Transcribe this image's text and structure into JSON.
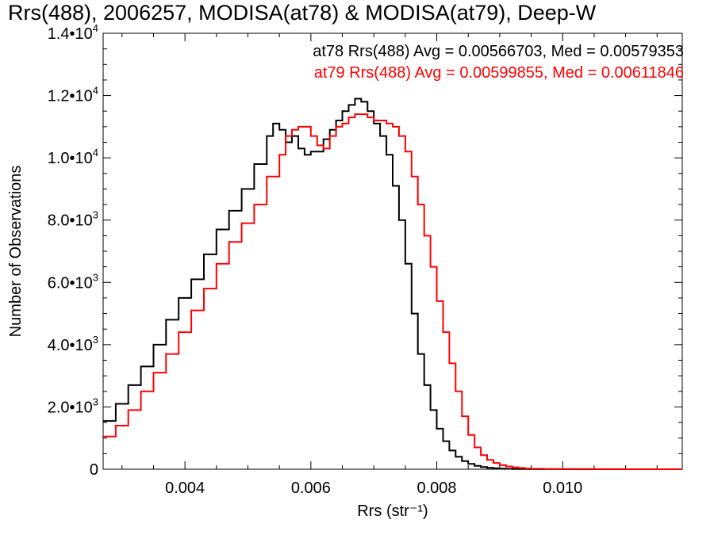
{
  "chart_data": {
    "type": "line",
    "title": "Rrs(488), 2006257, MODISA(at78) & MODISA(at79), Deep-W",
    "xlabel": "Rrs (str⁻¹)",
    "ylabel": "Number of Observations",
    "xlim": [
      0.0027,
      0.0119
    ],
    "ylim": [
      0,
      14000
    ],
    "x_ticks": [
      {
        "value": 0.004,
        "label": "0.004"
      },
      {
        "value": 0.006,
        "label": "0.006"
      },
      {
        "value": 0.008,
        "label": "0.008"
      },
      {
        "value": 0.01,
        "label": "0.010"
      }
    ],
    "y_ticks": [
      {
        "value": 0,
        "mant": "0",
        "exp": ""
      },
      {
        "value": 2000,
        "mant": "2.0•10",
        "exp": "3"
      },
      {
        "value": 4000,
        "mant": "4.0•10",
        "exp": "3"
      },
      {
        "value": 6000,
        "mant": "6.0•10",
        "exp": "3"
      },
      {
        "value": 8000,
        "mant": "8.0•10",
        "exp": "3"
      },
      {
        "value": 10000,
        "mant": "1.0•10",
        "exp": "4"
      },
      {
        "value": 12000,
        "mant": "1.2•10",
        "exp": "4"
      },
      {
        "value": 14000,
        "mant": "1.4•10",
        "exp": "4"
      }
    ],
    "annotations": [
      {
        "text": "at78 Rrs(488) Avg = 0.00566703, Med = 0.00579353",
        "color": "#000000"
      },
      {
        "text": "at79 Rrs(488) Avg = 0.00599855, Med = 0.00611846",
        "color": "#ff0000"
      }
    ],
    "series": [
      {
        "color": "#000000",
        "x": [
          0.0027,
          0.0029,
          0.0031,
          0.0033,
          0.0035,
          0.0037,
          0.0039,
          0.0041,
          0.0043,
          0.0045,
          0.0047,
          0.0049,
          0.0051,
          0.0053,
          0.0054,
          0.0055,
          0.0056,
          0.0057,
          0.0058,
          0.0059,
          0.006,
          0.0061,
          0.0062,
          0.0063,
          0.0064,
          0.0065,
          0.0066,
          0.0067,
          0.0068,
          0.0069,
          0.007,
          0.0071,
          0.0072,
          0.0073,
          0.0074,
          0.0075,
          0.0076,
          0.0077,
          0.0078,
          0.0079,
          0.008,
          0.0081,
          0.0082,
          0.0083,
          0.0084,
          0.0085,
          0.0086,
          0.0087,
          0.0088,
          0.0089,
          0.009,
          0.0091,
          0.0092,
          0.0093,
          0.0095,
          0.0097,
          0.01,
          0.0105,
          0.011,
          0.0119
        ],
        "y": [
          1550,
          2100,
          2700,
          3300,
          4000,
          4800,
          5500,
          6100,
          6900,
          7700,
          8300,
          9000,
          9800,
          10700,
          11100,
          10900,
          10500,
          10700,
          10300,
          10100,
          10200,
          10200,
          10600,
          10900,
          11200,
          11500,
          11700,
          11900,
          11800,
          11500,
          11100,
          10700,
          10100,
          9100,
          8000,
          6600,
          5000,
          3700,
          2700,
          1900,
          1300,
          900,
          600,
          400,
          260,
          170,
          110,
          70,
          45,
          30,
          20,
          12,
          8,
          5,
          3,
          2,
          1,
          1,
          0,
          0
        ]
      },
      {
        "color": "#ff0000",
        "x": [
          0.0027,
          0.0029,
          0.0031,
          0.0033,
          0.0035,
          0.0037,
          0.0039,
          0.0041,
          0.0043,
          0.0045,
          0.0047,
          0.0049,
          0.0051,
          0.0053,
          0.0055,
          0.0056,
          0.0057,
          0.0058,
          0.0059,
          0.006,
          0.0061,
          0.0062,
          0.0063,
          0.0064,
          0.0065,
          0.0066,
          0.0067,
          0.0068,
          0.0069,
          0.007,
          0.0071,
          0.0072,
          0.0073,
          0.0074,
          0.0075,
          0.0076,
          0.0077,
          0.0078,
          0.0079,
          0.008,
          0.0081,
          0.0082,
          0.0083,
          0.0084,
          0.0085,
          0.0086,
          0.0087,
          0.0088,
          0.0089,
          0.009,
          0.0091,
          0.0092,
          0.0093,
          0.0094,
          0.0095,
          0.0097,
          0.01,
          0.0105,
          0.011,
          0.0119
        ],
        "y": [
          1050,
          1400,
          1900,
          2500,
          3100,
          3700,
          4400,
          5100,
          5800,
          6600,
          7300,
          7900,
          8500,
          9400,
          10100,
          10700,
          10900,
          11000,
          11000,
          10700,
          10400,
          10300,
          10700,
          11000,
          11100,
          11300,
          11400,
          11400,
          11300,
          11200,
          11200,
          11100,
          11000,
          10700,
          10200,
          9400,
          8500,
          7500,
          6500,
          5400,
          4400,
          3400,
          2500,
          1700,
          1100,
          700,
          450,
          300,
          200,
          130,
          90,
          60,
          40,
          25,
          15,
          8,
          4,
          2,
          1,
          0
        ]
      }
    ]
  }
}
